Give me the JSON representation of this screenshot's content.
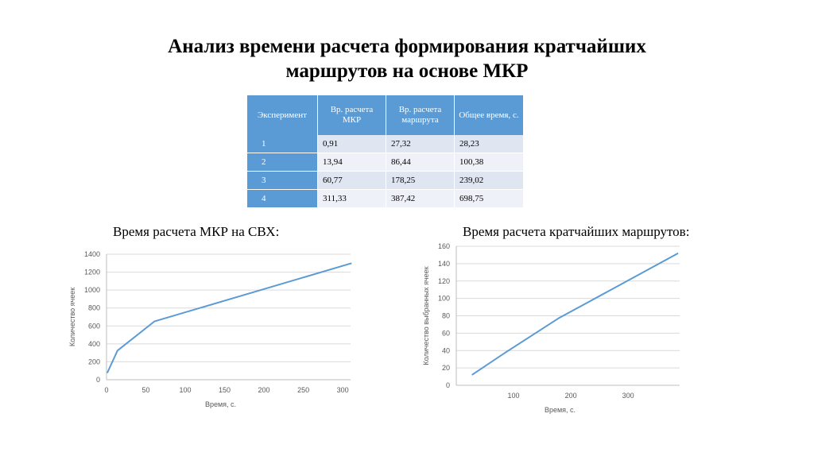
{
  "slide": {
    "title_line1": "Анализ времени расчета формирования кратчайших",
    "title_line2": "маршрутов на основе МКР"
  },
  "table": {
    "headers": [
      "Эксперимент",
      "Вр. расчета МКР",
      "Вр. расчета маршрута",
      "Общее время, с."
    ],
    "rows": [
      [
        "1",
        "0,91",
        "27,32",
        "28,23"
      ],
      [
        "2",
        "13,94",
        "86,44",
        "100,38"
      ],
      [
        "3",
        "60,77",
        "178,25",
        "239,02"
      ],
      [
        "4",
        "311,33",
        "387,42",
        "698,75"
      ]
    ]
  },
  "chart_data": [
    {
      "type": "line",
      "title": "Время расчета МКР на СВХ:",
      "xlabel": "Время, с.",
      "ylabel": "Количество ячеек",
      "xlim": [
        0,
        310
      ],
      "ylim": [
        0,
        1400
      ],
      "xticks": [
        "0",
        "50",
        "100",
        "150",
        "200",
        "250",
        "300"
      ],
      "yticks": [
        "0",
        "200",
        "400",
        "600",
        "800",
        "1000",
        "1200",
        "1400"
      ],
      "color": "#5b9bd5",
      "series": [
        {
          "x": [
            0.91,
            13.94,
            60.77,
            311.33
          ],
          "y": [
            75,
            325,
            650,
            1300
          ]
        }
      ]
    },
    {
      "type": "line",
      "title": "Время расчета кратчайших маршрутов:",
      "xlabel": "Время, с.",
      "ylabel": "Количество выбранных ячеек",
      "xlim": [
        0,
        390
      ],
      "ylim": [
        0,
        160
      ],
      "xticks": [
        "100",
        "200",
        "300"
      ],
      "yticks": [
        "0",
        "20",
        "40",
        "60",
        "80",
        "100",
        "120",
        "140",
        "160"
      ],
      "color": "#5b9bd5",
      "series": [
        {
          "x": [
            27.32,
            86.44,
            178.25,
            387.42
          ],
          "y": [
            12,
            38,
            77,
            152
          ]
        }
      ]
    }
  ]
}
